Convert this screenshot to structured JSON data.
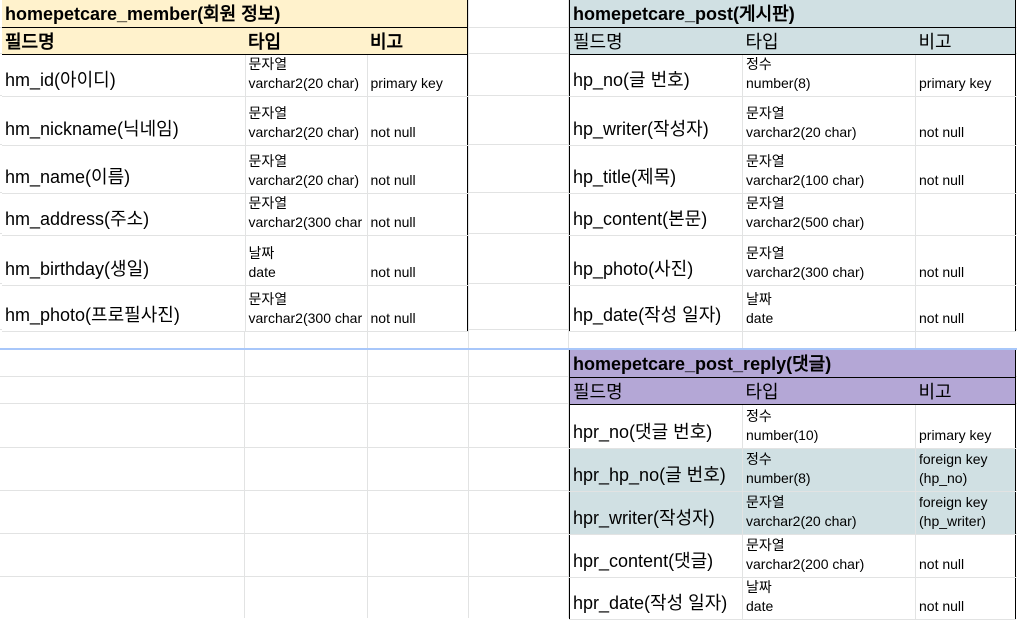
{
  "member": {
    "title": "homepetcare_member(회원 정보)",
    "headers": [
      "필드명",
      "타입",
      "비고"
    ],
    "rows": [
      {
        "name": "hm_id(아이디)",
        "type1": "문자열",
        "type2": "varchar2(20 char)",
        "note1": "",
        "note2": "primary key"
      },
      {
        "name": "hm_nickname(닉네임)",
        "type1": "문자열",
        "type2": "varchar2(20 char)",
        "note1": "",
        "note2": "not null"
      },
      {
        "name": "hm_name(이름)",
        "type1": "문자열",
        "type2": "varchar2(20 char)",
        "note1": "",
        "note2": "not null"
      },
      {
        "name": "hm_address(주소)",
        "type1": "문자열",
        "type2": "varchar2(300 char",
        "note1": "",
        "note2": "not null"
      },
      {
        "name": "hm_birthday(생일)",
        "type1": "날짜",
        "type2": "date",
        "note1": "",
        "note2": "not null"
      },
      {
        "name": "hm_photo(프로필사진)",
        "type1": "문자열",
        "type2": "varchar2(300 char",
        "note1": "",
        "note2": "not null"
      }
    ]
  },
  "post": {
    "title": "homepetcare_post(게시판)",
    "headers": [
      "필드명",
      "타입",
      "비고"
    ],
    "rows": [
      {
        "name": "hp_no(글 번호)",
        "type1": "정수",
        "type2": "number(8)",
        "note1": "",
        "note2": "primary key"
      },
      {
        "name": "hp_writer(작성자)",
        "type1": "문자열",
        "type2": "varchar2(20 char)",
        "note1": "",
        "note2": "not null"
      },
      {
        "name": "hp_title(제목)",
        "type1": "문자열",
        "type2": "varchar2(100 char)",
        "note1": "",
        "note2": "not null"
      },
      {
        "name": "hp_content(본문)",
        "type1": "문자열",
        "type2": "varchar2(500 char)",
        "note1": "",
        "note2": ""
      },
      {
        "name": "hp_photo(사진)",
        "type1": "문자열",
        "type2": "varchar2(300 char)",
        "note1": "",
        "note2": "not null"
      },
      {
        "name": "hp_date(작성 일자)",
        "type1": "날짜",
        "type2": "date",
        "note1": "",
        "note2": "not null"
      }
    ]
  },
  "reply": {
    "title": "homepetcare_post_reply(댓글)",
    "headers": [
      "필드명",
      "타입",
      "비고"
    ],
    "rows": [
      {
        "name": "hpr_no(댓글 번호)",
        "type1": "정수",
        "type2": "number(10)",
        "note1": "",
        "note2": "primary key"
      },
      {
        "name": "hpr_hp_no(글 번호)",
        "type1": "정수",
        "type2": "number(8)",
        "note1": "foreign key",
        "note2": "(hp_no)"
      },
      {
        "name": "hpr_writer(작성자)",
        "type1": "문자열",
        "type2": "varchar2(20 char)",
        "note1": "foreign key",
        "note2": "(hp_writer)"
      },
      {
        "name": "hpr_content(댓글)",
        "type1": "문자열",
        "type2": "varchar2(200 char)",
        "note1": "",
        "note2": "not null"
      },
      {
        "name": "hpr_date(작성 일자)",
        "type1": "날짜",
        "type2": "date",
        "note1": "",
        "note2": "not null"
      }
    ]
  },
  "colors": {
    "member_header": "#fff2cc",
    "post_header": "#d0e0e3",
    "reply_header": "#b4a7d6",
    "fk_row": "#d0e0e3",
    "gridline": "#e2e3e3"
  }
}
